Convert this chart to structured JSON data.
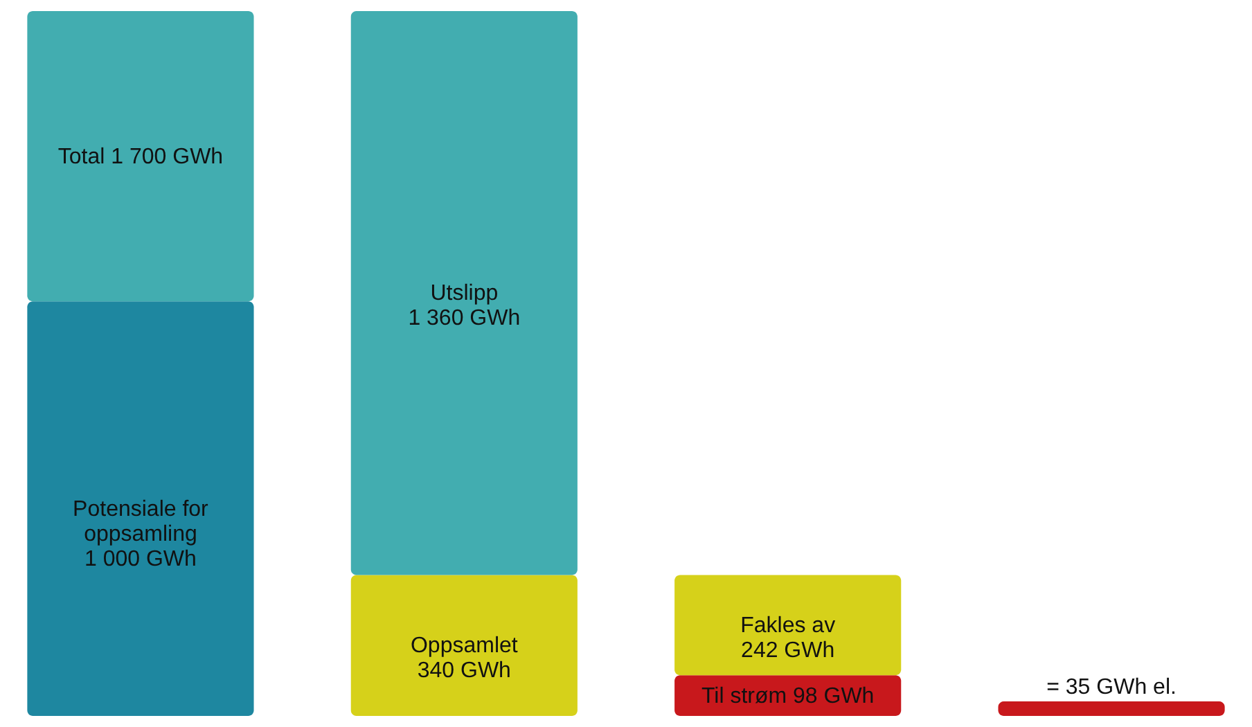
{
  "chart_data": {
    "type": "bar",
    "stacked": true,
    "tick_labels": false,
    "legend": false,
    "categories": [
      null,
      null,
      null,
      null
    ],
    "series": [
      {
        "color": "#1e87a0",
        "values": [
          1000,
          null,
          null,
          null
        ],
        "value_labels": [
          "Potensiale for\noppsamling\n1 000 GWh",
          null,
          null,
          null
        ]
      },
      {
        "color": "#c8181c",
        "values": [
          null,
          null,
          98,
          35
        ],
        "value_labels": [
          null,
          null,
          "Til strøm 98 GWh",
          "= 35 GWh el."
        ]
      },
      {
        "color": "#d6d11a",
        "values": [
          null,
          340,
          242,
          null
        ],
        "value_labels": [
          null,
          "Oppsamlet\n340 GWh",
          "Fakles av\n242 GWh",
          null
        ]
      },
      {
        "color": "#42adb0",
        "values": [
          700,
          1360,
          null,
          null
        ],
        "value_labels": [
          null,
          "Utslipp\n1 360 GWh",
          null,
          null
        ]
      }
    ],
    "totals": [
      "Total 1 700 GWh",
      null,
      null,
      null
    ]
  }
}
